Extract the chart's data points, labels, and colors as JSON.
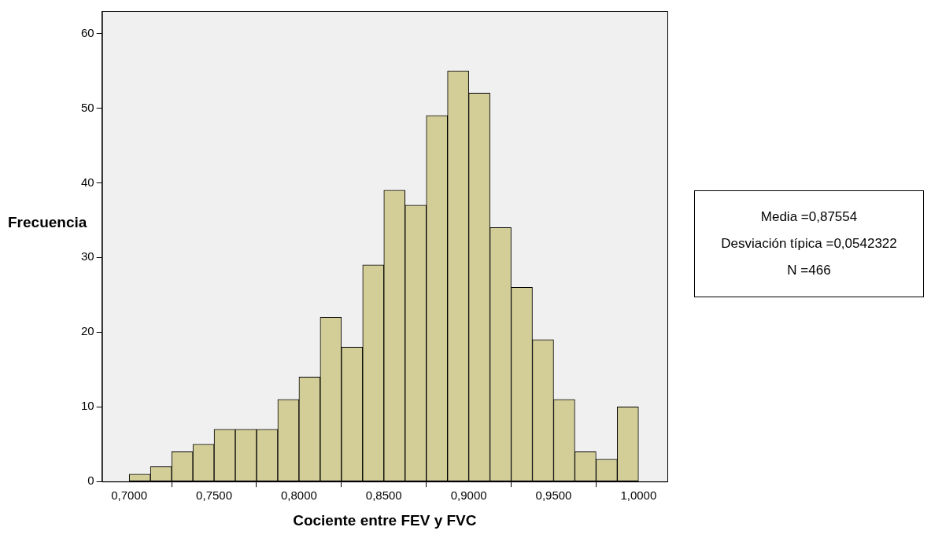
{
  "chart_data": {
    "type": "histogram",
    "xlabel": "Cociente entre FEV y FVC",
    "ylabel": "Frecuencia",
    "bins": [
      0.7,
      0.7125,
      0.725,
      0.7375,
      0.75,
      0.7625,
      0.775,
      0.7875,
      0.8,
      0.8125,
      0.825,
      0.8375,
      0.85,
      0.8625,
      0.875,
      0.8875,
      0.9,
      0.9125,
      0.925,
      0.9375,
      0.95,
      0.9625,
      0.975,
      0.9875,
      1.0
    ],
    "values": [
      1,
      2,
      4,
      5,
      7,
      7,
      7,
      11,
      14,
      22,
      18,
      29,
      39,
      37,
      49,
      55,
      52,
      34,
      26,
      19,
      11,
      4,
      3,
      10
    ],
    "color": "#d3ce98",
    "xlim": [
      0.684,
      1.017
    ],
    "xticks": [
      {
        "value": 0.7,
        "label": "0,7000"
      },
      {
        "value": 0.75,
        "label": "0,7500"
      },
      {
        "value": 0.8,
        "label": "0,8000"
      },
      {
        "value": 0.85,
        "label": "0,8500"
      },
      {
        "value": 0.9,
        "label": "0,9000"
      },
      {
        "value": 0.95,
        "label": "0,9500"
      },
      {
        "value": 1.0,
        "label": "1,0000"
      }
    ],
    "ylim": [
      0,
      63
    ],
    "yticks": [
      0,
      10,
      20,
      30,
      40,
      50,
      60
    ],
    "grid": false,
    "annotations": [
      "Media =0,87554",
      "Desviación típica =0,0542322",
      "N =466"
    ]
  }
}
